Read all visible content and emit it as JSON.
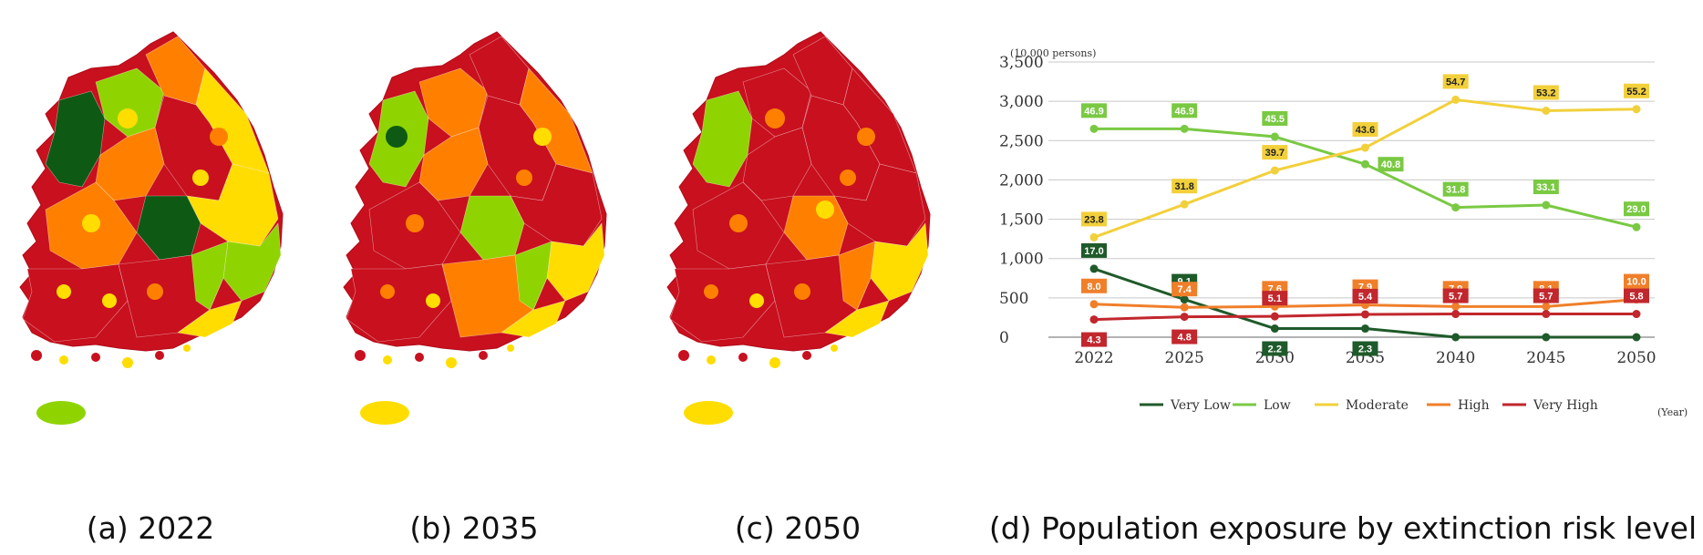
{
  "captions": {
    "a": "(a) 2022",
    "b": "(b) 2035",
    "c": "(c) 2050",
    "d": "(d) Population exposure by extinction risk level"
  },
  "colors": {
    "very_low": "#1f5a2a",
    "low": "#7ac943",
    "moderate": "#f2d03b",
    "high": "#f07f2a",
    "very_high": "#c1272d",
    "map_very_low": "#0e5a14",
    "map_low": "#8fd400",
    "map_moderate": "#ffdd00",
    "map_high": "#ff8000",
    "map_very_high": "#c8101e",
    "grid": "#c8c8c8"
  },
  "maps": [
    {
      "key": "a",
      "jeju": "map_low"
    },
    {
      "key": "b",
      "jeju": "map_moderate"
    },
    {
      "key": "c",
      "jeju": "map_moderate"
    }
  ],
  "chart_data": {
    "type": "line",
    "y_unit_label": "(10,000 persons)",
    "x_unit_label": "(Year)",
    "x": [
      2022,
      2025,
      2030,
      2035,
      2040,
      2045,
      2050
    ],
    "ylim": [
      0,
      3500
    ],
    "yticks": [
      0,
      500,
      1000,
      1500,
      2000,
      2500,
      3000,
      3500
    ],
    "ytick_labels": [
      "0",
      "500",
      "1,000",
      "1,500",
      "2,000",
      "2,500",
      "3,000",
      "3,500"
    ],
    "grid": true,
    "legend_position": "bottom",
    "series": [
      {
        "name": "Very Low",
        "color_key": "very_low",
        "values": [
          870,
          480,
          110,
          110,
          0,
          0,
          0
        ],
        "labels": [
          "17.0",
          "9.1",
          "2.2",
          "2.3",
          "",
          "",
          ""
        ]
      },
      {
        "name": "Low",
        "color_key": "low",
        "values": [
          2650,
          2650,
          2550,
          2200,
          1650,
          1680,
          1400
        ],
        "labels": [
          "46.9",
          "46.9",
          "45.5",
          "40.8",
          "31.8",
          "33.1",
          "29.0"
        ]
      },
      {
        "name": "Moderate",
        "color_key": "moderate",
        "values": [
          1270,
          1690,
          2120,
          2410,
          3020,
          2880,
          2900
        ],
        "labels": [
          "23.8",
          "31.8",
          "39.7",
          "43.6",
          "54.7",
          "53.2",
          "55.2"
        ]
      },
      {
        "name": "High",
        "color_key": "high",
        "values": [
          420,
          380,
          390,
          410,
          390,
          390,
          480
        ],
        "labels": [
          "8.0",
          "7.4",
          "7.6",
          "7.9",
          "7.9",
          "8.1",
          "10.0"
        ]
      },
      {
        "name": "Very High",
        "color_key": "very_high",
        "values": [
          225,
          260,
          265,
          290,
          295,
          295,
          295
        ],
        "labels": [
          "4.3",
          "4.8",
          "5.1",
          "5.4",
          "5.7",
          "5.7",
          "5.8"
        ]
      }
    ]
  }
}
